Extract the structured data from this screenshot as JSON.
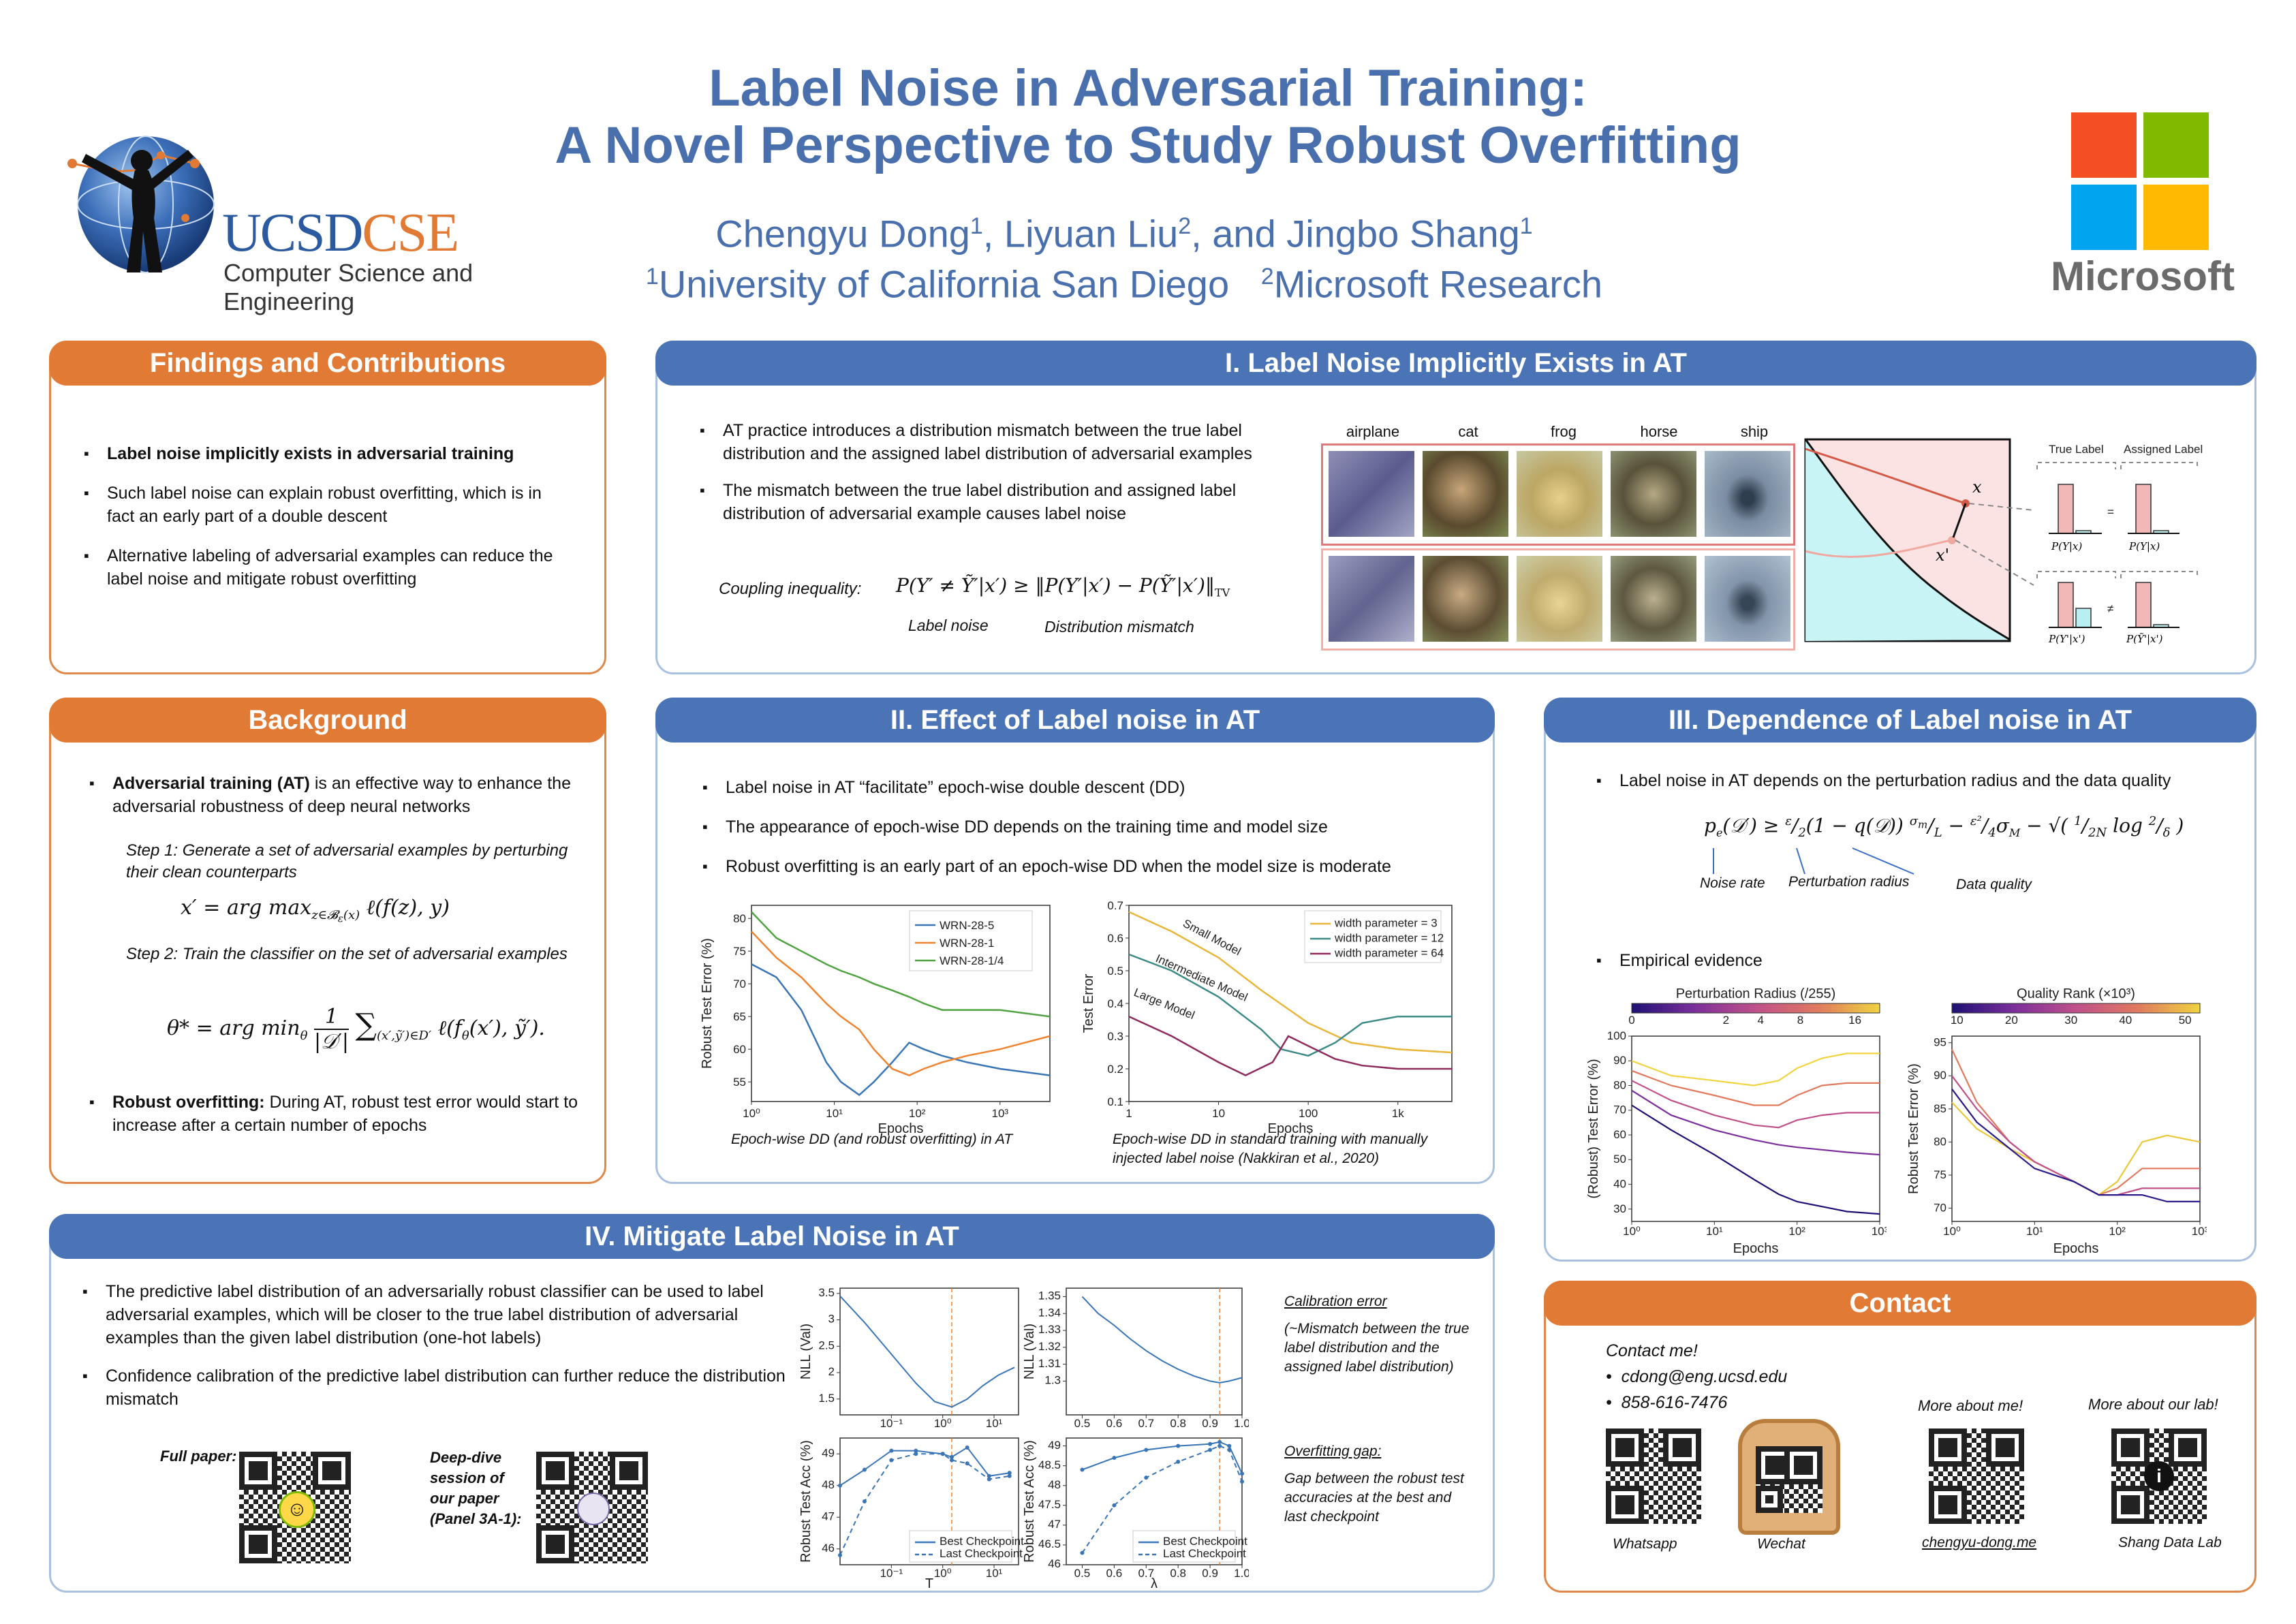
{
  "header": {
    "title_line1": "Label Noise in Adversarial Training:",
    "title_line2": "A Novel Perspective to Study Robust Overfitting",
    "authors": [
      {
        "name": "Chengyu Dong",
        "aff": "1"
      },
      {
        "name": "Liyuan Liu",
        "aff": "2"
      },
      {
        "name": "Jingbo Shang",
        "aff": "1"
      }
    ],
    "and": "and",
    "affiliations": [
      {
        "num": "1",
        "name": "University of California San Diego"
      },
      {
        "num": "2",
        "name": "Microsoft Research"
      }
    ],
    "ucsd_logo": {
      "brand1": "UCSD",
      "brand2": "CSE",
      "subtitle": "Computer Science and Engineering"
    },
    "microsoft_logo": {
      "text": "Microsoft",
      "colors": [
        "#f25022",
        "#7fba00",
        "#00a4ef",
        "#ffb900"
      ]
    }
  },
  "findings": {
    "title": "Findings and Contributions",
    "bullets": [
      "Label noise implicitly exists in adversarial training",
      "Such label noise can explain robust overfitting, which is in fact an early part of a double descent",
      "Alternative labeling of adversarial examples can reduce the label noise and mitigate robust overfitting"
    ]
  },
  "background": {
    "title": "Background",
    "bullet1_bold": "Adversarial training (AT)",
    "bullet1_rest": " is an effective way to enhance the adversarial robustness of deep neural networks",
    "step1": "Step 1:     Generate a set of adversarial examples by perturbing their clean counterparts",
    "step2": "Step 2:     Train the classifier on the set of adversarial examples",
    "bullet2_bold": "Robust overfitting:",
    "bullet2_rest": " During AT, robust test error would start to increase after a certain number of epochs"
  },
  "section1": {
    "title": "I. Label Noise Implicitly Exists in AT",
    "bullets": [
      "AT practice introduces a distribution mismatch between the true label distribution and the assigned label distribution of adversarial examples",
      "The mismatch between the true label distribution and assigned label distribution of adversarial example causes label noise"
    ],
    "coupling_label": "Coupling inequality:",
    "label_noise": "Label noise",
    "dist_mismatch": "Distribution mismatch",
    "classes": [
      "airplane",
      "cat",
      "frog",
      "horse",
      "ship"
    ],
    "true_label": "True Label",
    "assigned_label": "Assigned Label",
    "x": "x",
    "x_prime": "x'",
    "p_true_clean": "P(Y|x)",
    "p_assigned_clean": "P(Y|x)",
    "p_true_adv": "P(Y'|x')",
    "p_assigned_adv": "P(Ỹ'|x')"
  },
  "section2": {
    "title": "II. Effect of Label noise in AT",
    "bullets": [
      "Label noise in AT “facilitate” epoch-wise double descent (DD)",
      "The appearance of epoch-wise DD depends on the training time and model size",
      "Robust overfitting is an early part of an epoch-wise DD when the model size is moderate"
    ],
    "caption_left": "Epoch-wise DD (and robust overfitting) in AT",
    "caption_right": "Epoch-wise DD in standard training with manually injected label noise (Nakkiran et al., 2020)"
  },
  "section3": {
    "title": "III. Dependence of Label noise in AT",
    "bullet1": "Label noise in AT depends on the perturbation radius and the data quality",
    "noise_rate": "Noise rate",
    "perturbation_radius": "Perturbation radius",
    "data_quality": "Data quality",
    "bullet2": "Empirical evidence"
  },
  "section4": {
    "title": "IV. Mitigate Label Noise in AT",
    "bullets": [
      "The predictive label distribution of an adversarially robust classifier can be used to label adversarial examples, which will be closer to the true label distribution of adversarial examples than the given label distribution (one-hot labels)",
      "Confidence calibration of the predictive label distribution can further reduce the distribution mismatch"
    ],
    "full_paper": "Full paper:",
    "deep_dive": "Deep-dive session of our paper (Panel 3A-1):",
    "calib_title": "Calibration error",
    "calib_text": "(~Mismatch between the true label distribution and the assigned label distribution)",
    "overfit_title": "Overfitting gap:",
    "overfit_text": "Gap between the robust test accuracies at the best and last checkpoint"
  },
  "contact": {
    "title": "Contact",
    "contact_me": "Contact me!",
    "email": "cdong@eng.ucsd.edu",
    "phone": "858-616-7476",
    "more_me": "More about me!",
    "more_lab": "More about our lab!",
    "qr_labels": [
      "Whatsapp",
      "Wechat",
      "chengyu-dong.me",
      "Shang Data Lab"
    ]
  },
  "chart_data": [
    {
      "type": "line",
      "title": "",
      "xlabel": "Epochs",
      "ylabel": "Robust Test Error (%)",
      "xscale": "log",
      "xlim": [
        1,
        4000
      ],
      "ylim": [
        52,
        82
      ],
      "xticks": [
        "10⁰",
        "10¹",
        "10²",
        "10³"
      ],
      "yticks": [
        55,
        60,
        65,
        70,
        75,
        80
      ],
      "legend": "top-right",
      "series": [
        {
          "name": "WRN-28-5",
          "color": "#3a75b5",
          "x": [
            1,
            2,
            4,
            8,
            12,
            20,
            30,
            50,
            80,
            120,
            200,
            400,
            1000,
            4000
          ],
          "y": [
            73,
            71,
            66,
            58,
            55,
            53,
            55,
            58,
            61,
            60,
            59,
            58,
            57,
            56
          ]
        },
        {
          "name": "WRN-28-1",
          "color": "#ef8330",
          "x": [
            1,
            2,
            4,
            8,
            12,
            20,
            30,
            50,
            80,
            120,
            200,
            400,
            1000,
            4000
          ],
          "y": [
            78,
            74,
            71,
            67,
            65,
            63,
            60,
            57,
            56,
            57,
            58,
            59,
            60,
            62
          ]
        },
        {
          "name": "WRN-28-1/4",
          "color": "#4fa340",
          "x": [
            1,
            2,
            4,
            8,
            12,
            20,
            30,
            50,
            80,
            120,
            200,
            400,
            1000,
            4000
          ],
          "y": [
            81,
            77,
            75,
            73,
            72,
            71,
            70,
            69,
            68,
            67,
            66,
            66,
            66,
            65
          ]
        }
      ]
    },
    {
      "type": "line",
      "title": "",
      "xlabel": "Epochs",
      "ylabel": "Test Error",
      "xscale": "log",
      "xlim": [
        1,
        4000
      ],
      "ylim": [
        0.1,
        0.7
      ],
      "xticks": [
        "1",
        "10",
        "100",
        "1k"
      ],
      "yticks": [
        0.1,
        0.2,
        0.3,
        0.4,
        0.5,
        0.6,
        0.7
      ],
      "legend": "top-right",
      "annotations": [
        "Small Model",
        "Intermediate Model",
        "Large Model"
      ],
      "series": [
        {
          "name": "width parameter = 3",
          "color": "#e7b63a",
          "x": [
            1,
            3,
            10,
            30,
            100,
            300,
            1000,
            4000
          ],
          "y": [
            0.68,
            0.62,
            0.54,
            0.44,
            0.34,
            0.28,
            0.26,
            0.25
          ]
        },
        {
          "name": "width parameter = 12",
          "color": "#3e8a86",
          "x": [
            1,
            3,
            10,
            30,
            50,
            100,
            200,
            400,
            1000,
            4000
          ],
          "y": [
            0.55,
            0.5,
            0.42,
            0.32,
            0.26,
            0.24,
            0.28,
            0.34,
            0.36,
            0.36
          ]
        },
        {
          "name": "width parameter = 64",
          "color": "#8e2a5c",
          "x": [
            1,
            3,
            10,
            20,
            40,
            60,
            100,
            200,
            400,
            1000,
            4000
          ],
          "y": [
            0.36,
            0.3,
            0.22,
            0.18,
            0.22,
            0.3,
            0.27,
            0.23,
            0.21,
            0.2,
            0.2
          ]
        }
      ]
    },
    {
      "type": "line",
      "title": "Perturbation Radius (/255)",
      "xlabel": "Epochs",
      "ylabel": "(Robust) Test Error (%)",
      "xscale": "log",
      "xlim": [
        1,
        1000
      ],
      "ylim": [
        25,
        100
      ],
      "xticks": [
        "10⁰",
        "10¹",
        "10²",
        "10³"
      ],
      "yticks": [
        30,
        40,
        50,
        60,
        70,
        80,
        90,
        100
      ],
      "colorbar_ticks": [
        "0",
        "2",
        "4",
        "8",
        "16"
      ],
      "series": [
        {
          "name": "16",
          "color": "#f0d440",
          "x": [
            1,
            3,
            10,
            30,
            60,
            100,
            200,
            400,
            1000
          ],
          "y": [
            90,
            84,
            82,
            80,
            82,
            87,
            91,
            93,
            93
          ]
        },
        {
          "name": "8",
          "color": "#e07a5f",
          "x": [
            1,
            3,
            10,
            30,
            60,
            100,
            200,
            400,
            1000
          ],
          "y": [
            86,
            80,
            76,
            72,
            72,
            76,
            80,
            81,
            81
          ]
        },
        {
          "name": "4",
          "color": "#c0508a",
          "x": [
            1,
            3,
            10,
            30,
            60,
            100,
            200,
            400,
            1000
          ],
          "y": [
            82,
            74,
            68,
            64,
            63,
            66,
            68,
            69,
            69
          ]
        },
        {
          "name": "2",
          "color": "#7a2f9a",
          "x": [
            1,
            3,
            10,
            30,
            60,
            100,
            200,
            400,
            1000
          ],
          "y": [
            78,
            68,
            62,
            58,
            56,
            55,
            54,
            53,
            52
          ]
        },
        {
          "name": "0",
          "color": "#1f1075",
          "x": [
            1,
            3,
            10,
            30,
            60,
            100,
            200,
            400,
            1000
          ],
          "y": [
            72,
            62,
            52,
            42,
            36,
            33,
            31,
            29,
            28
          ]
        }
      ]
    },
    {
      "type": "line",
      "title": "Quality Rank (×10³)",
      "xlabel": "Epochs",
      "ylabel": "Robust Test Error (%)",
      "xscale": "log",
      "xlim": [
        1,
        1000
      ],
      "ylim": [
        68,
        96
      ],
      "xticks": [
        "10⁰",
        "10¹",
        "10²",
        "10³"
      ],
      "yticks": [
        70,
        75,
        80,
        85,
        90,
        95
      ],
      "colorbar_ticks": [
        "10",
        "20",
        "30",
        "40",
        "50"
      ],
      "series": [
        {
          "name": "50",
          "color": "#e9c83a",
          "x": [
            1,
            2,
            5,
            10,
            30,
            60,
            100,
            200,
            400,
            1000
          ],
          "y": [
            86,
            82,
            79,
            77,
            74,
            72,
            74,
            80,
            81,
            80
          ]
        },
        {
          "name": "40",
          "color": "#e07a5f",
          "x": [
            1,
            2,
            5,
            10,
            30,
            60,
            100,
            200,
            400,
            1000
          ],
          "y": [
            94,
            86,
            80,
            77,
            74,
            72,
            73,
            76,
            76,
            76
          ]
        },
        {
          "name": "30",
          "color": "#c0508a",
          "x": [
            1,
            2,
            5,
            10,
            30,
            60,
            100,
            200,
            400,
            1000
          ],
          "y": [
            90,
            85,
            80,
            77,
            74,
            72,
            72,
            73,
            73,
            73
          ]
        },
        {
          "name": "10",
          "color": "#2a1a8a",
          "x": [
            1,
            2,
            5,
            10,
            30,
            60,
            100,
            200,
            400,
            1000
          ],
          "y": [
            88,
            83,
            79,
            76,
            74,
            72,
            72,
            72,
            71,
            71
          ]
        }
      ]
    },
    {
      "type": "line",
      "xlabel": "",
      "ylabel": "NLL (Val)",
      "xscale": "log",
      "xlim": [
        0.01,
        30
      ],
      "ylim": [
        1.2,
        3.6
      ],
      "xticks": [
        "10⁻¹",
        "10⁰",
        "10¹"
      ],
      "yticks": [
        1.5,
        2.0,
        2.5,
        3.0,
        3.5
      ],
      "vline": 1.5,
      "series": [
        {
          "name": "",
          "color": "#3a75b5",
          "x": [
            0.01,
            0.03,
            0.1,
            0.3,
            0.7,
            1.5,
            3,
            6,
            12,
            25
          ],
          "y": [
            3.45,
            2.95,
            2.35,
            1.8,
            1.45,
            1.35,
            1.5,
            1.75,
            1.95,
            2.1
          ]
        }
      ]
    },
    {
      "type": "line",
      "xlabel": "",
      "ylabel": "NLL (Val)",
      "xlim": [
        0.45,
        1.0
      ],
      "ylim": [
        1.28,
        1.355
      ],
      "xticks": [
        "0.5",
        "0.6",
        "0.7",
        "0.8",
        "0.9",
        "1.0"
      ],
      "yticks": [
        1.3,
        1.31,
        1.32,
        1.33,
        1.34,
        1.35
      ],
      "vline": 0.93,
      "series": [
        {
          "name": "",
          "color": "#3a75b5",
          "x": [
            0.5,
            0.55,
            0.6,
            0.65,
            0.7,
            0.75,
            0.8,
            0.85,
            0.9,
            0.93,
            0.96,
            1.0
          ],
          "y": [
            1.35,
            1.34,
            1.333,
            1.325,
            1.318,
            1.312,
            1.307,
            1.303,
            1.3,
            1.299,
            1.3,
            1.302
          ]
        }
      ]
    },
    {
      "type": "line",
      "xlabel": "T",
      "ylabel": "Robust Test Acc (%)",
      "xscale": "log",
      "xlim": [
        0.01,
        30
      ],
      "ylim": [
        45.5,
        49.5
      ],
      "xticks": [
        "10⁻¹",
        "10⁰",
        "10¹"
      ],
      "yticks": [
        46,
        47,
        48,
        49
      ],
      "vline": 1.5,
      "legend": "bottom-right",
      "series": [
        {
          "name": "Best Checkpoint",
          "color": "#3a75b5",
          "dash": false,
          "x": [
            0.01,
            0.03,
            0.1,
            0.3,
            1,
            1.5,
            3,
            8,
            20
          ],
          "y": [
            48.0,
            48.5,
            49.1,
            49.1,
            49.0,
            48.9,
            49.2,
            48.3,
            48.4
          ]
        },
        {
          "name": "Last Checkpoint",
          "color": "#3a75b5",
          "dash": true,
          "x": [
            0.01,
            0.03,
            0.1,
            0.3,
            1,
            1.5,
            3,
            8,
            20
          ],
          "y": [
            45.8,
            47.5,
            48.8,
            49.0,
            49.0,
            48.8,
            48.7,
            48.2,
            48.3
          ]
        }
      ]
    },
    {
      "type": "line",
      "xlabel": "λ",
      "ylabel": "Robust Test Acc (%)",
      "xlim": [
        0.45,
        1.0
      ],
      "ylim": [
        46.0,
        49.2
      ],
      "xticks": [
        "0.5",
        "0.6",
        "0.7",
        "0.8",
        "0.9",
        "1.0"
      ],
      "yticks": [
        46.0,
        46.5,
        47.0,
        47.5,
        48.0,
        48.5,
        49.0
      ],
      "vline": 0.93,
      "legend": "bottom-right",
      "series": [
        {
          "name": "Best Checkpoint",
          "color": "#3a75b5",
          "dash": false,
          "x": [
            0.5,
            0.6,
            0.7,
            0.8,
            0.9,
            0.93,
            0.96,
            1.0
          ],
          "y": [
            48.4,
            48.7,
            48.9,
            49.0,
            49.05,
            49.1,
            49.0,
            48.3
          ]
        },
        {
          "name": "Last Checkpoint",
          "color": "#3a75b5",
          "dash": true,
          "x": [
            0.5,
            0.6,
            0.7,
            0.8,
            0.9,
            0.93,
            0.96,
            1.0
          ],
          "y": [
            46.3,
            47.5,
            48.2,
            48.6,
            48.9,
            49.0,
            48.9,
            48.1
          ]
        }
      ]
    }
  ]
}
